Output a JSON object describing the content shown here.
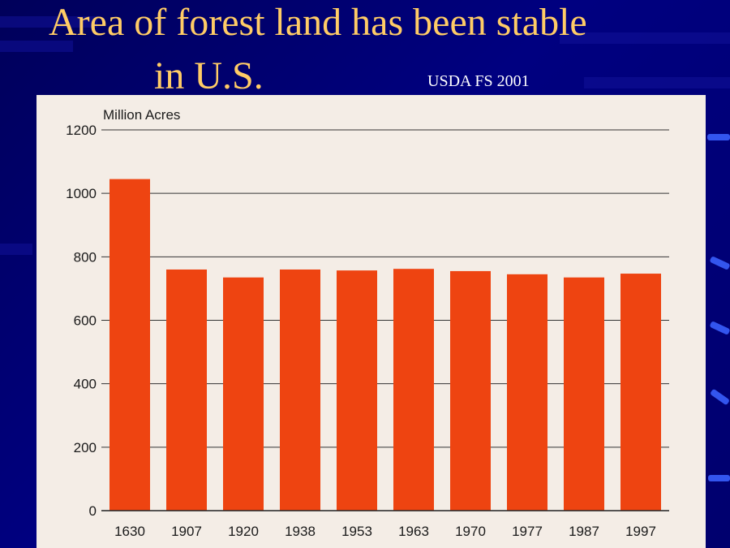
{
  "slide": {
    "title_line1": "Area of forest land has been stable",
    "title_line2": "in U.S.",
    "source": "USDA FS 2001"
  },
  "colors": {
    "background": "#000066",
    "title": "#ffcc66",
    "bar": "#ee4411",
    "panel": "#f4ede6"
  },
  "chart_data": {
    "type": "bar",
    "title": "",
    "ylabel": "Million Acres",
    "xlabel": "",
    "categories": [
      "1630",
      "1907",
      "1920",
      "1938",
      "1953",
      "1963",
      "1970",
      "1977",
      "1987",
      "1997"
    ],
    "values": [
      1045,
      760,
      735,
      760,
      757,
      762,
      755,
      745,
      735,
      747
    ],
    "ylim": [
      0,
      1200
    ],
    "yticks": [
      0,
      200,
      400,
      600,
      800,
      1000,
      1200
    ],
    "grid": true,
    "legend": "none"
  }
}
